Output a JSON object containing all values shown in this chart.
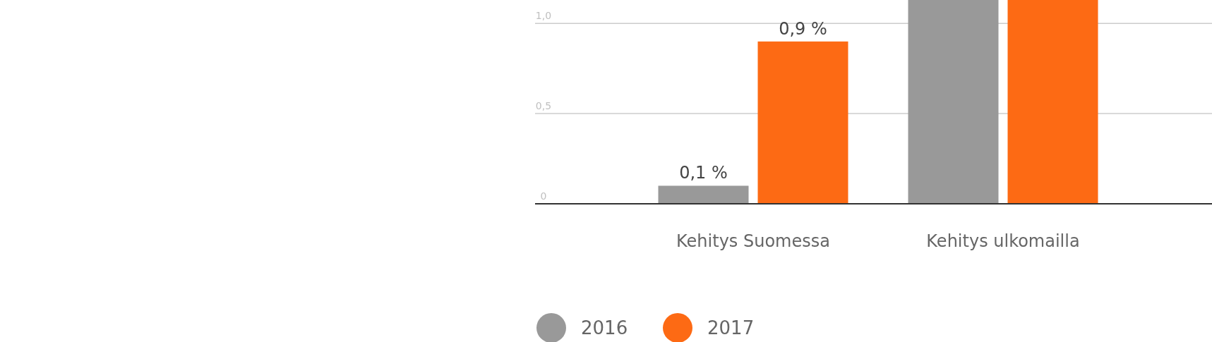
{
  "chart_data": {
    "type": "bar",
    "categories": [
      "Kehitys Suomessa",
      "Kehitys ulkomailla"
    ],
    "series": [
      {
        "name": "2016",
        "color": "#999999",
        "values": [
          0.1,
          1.13
        ],
        "value_labels": [
          "0,1 %",
          null
        ]
      },
      {
        "name": "2017",
        "color": "#fd6a14",
        "values": [
          0.9,
          1.13
        ],
        "value_labels": [
          "0,9 %",
          null
        ]
      }
    ],
    "ylim": [
      0,
      1.13
    ],
    "yticks": [
      0,
      {
        "value": 0.5,
        "label": "0,5"
      },
      {
        "value": 1,
        "label": "1,0"
      }
    ],
    "grid": "y",
    "legend": "bottom left"
  }
}
